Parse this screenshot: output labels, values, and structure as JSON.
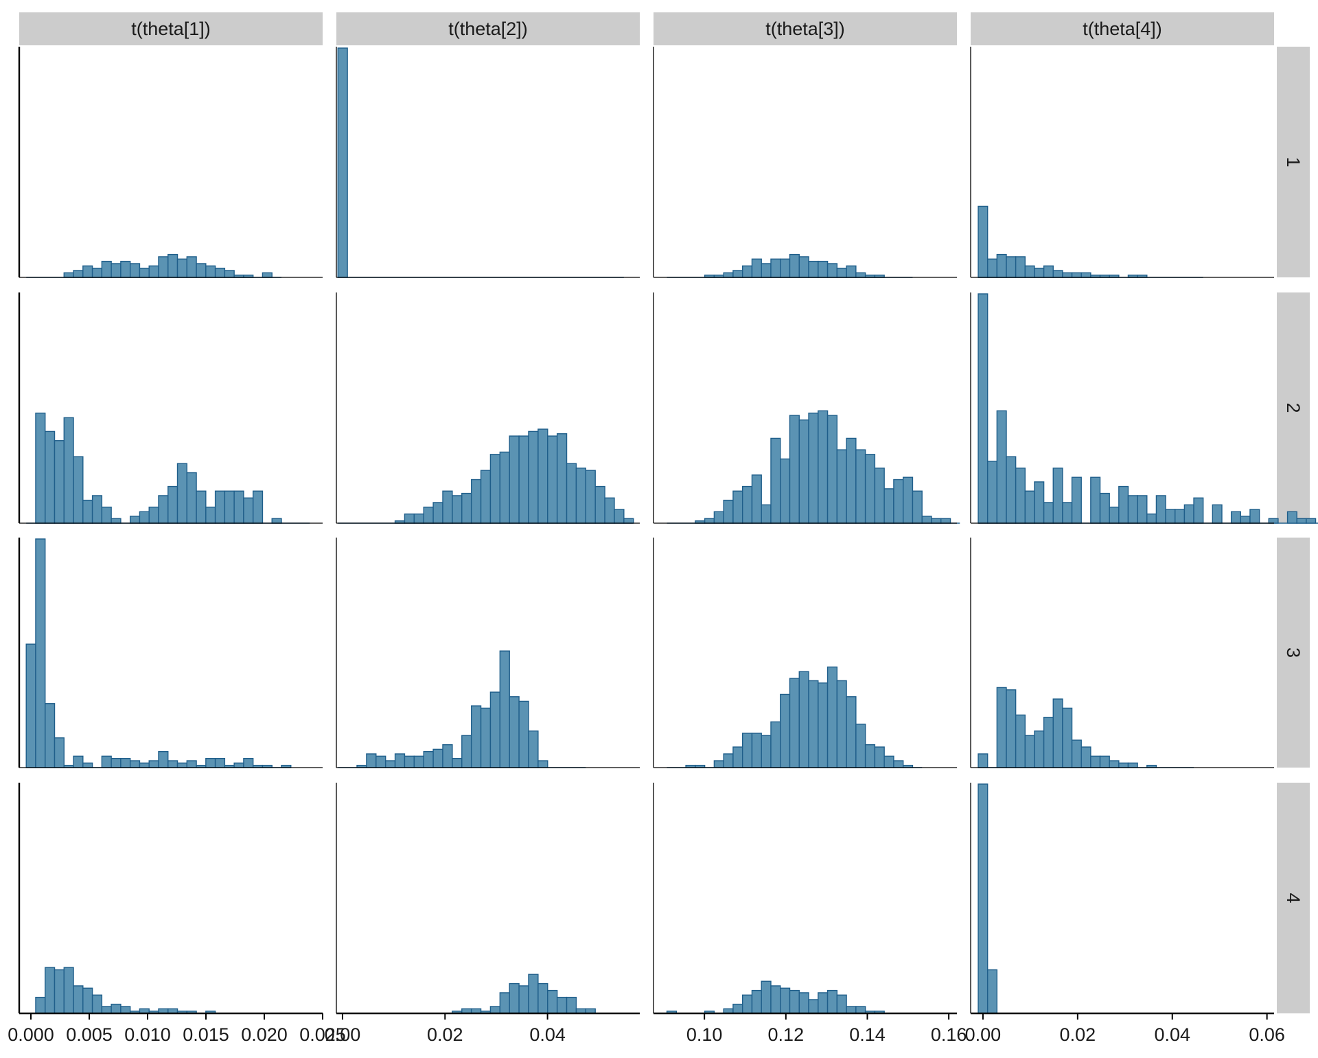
{
  "chart_data": {
    "type": "bar",
    "title": "",
    "xlabel": "",
    "ylabel": "",
    "grid": false,
    "colors": {
      "bar_fill": "#5b93b3",
      "bar_stroke": "#1f5e8a",
      "strip_fill": "#cccccc",
      "axis": "#000000",
      "text": "#1a1a1a"
    },
    "columns": [
      {
        "label": "t(theta[1])",
        "xlim": [
          -0.001,
          0.025
        ],
        "ticks": [
          0.0,
          0.005,
          0.01,
          0.015,
          0.02,
          0.025
        ],
        "tick_labels": [
          "0.000",
          "0.005",
          "0.010",
          "0.015",
          "0.020",
          "0.025"
        ],
        "bin_start": -0.0004,
        "bin_width": 0.00081
      },
      {
        "label": "t(theta[2])",
        "xlim": [
          -0.0012,
          0.058
        ],
        "ticks": [
          0.0,
          0.02,
          0.04
        ],
        "tick_labels": [
          "0.00",
          "0.02",
          "0.04"
        ],
        "bin_start": -0.0009,
        "bin_width": 0.00186
      },
      {
        "label": "t(theta[3])",
        "xlim": [
          0.0875,
          0.162
        ],
        "ticks": [
          0.1,
          0.12,
          0.14,
          0.16
        ],
        "tick_labels": [
          "0.10",
          "0.12",
          "0.14",
          "0.16"
        ],
        "bin_start": 0.0908,
        "bin_width": 0.00232
      },
      {
        "label": "t(theta[4])",
        "xlim": [
          -0.0026,
          0.0615
        ],
        "ticks": [
          0.0,
          0.02,
          0.04,
          0.06
        ],
        "tick_labels": [
          "0.00",
          "0.02",
          "0.04",
          "0.06"
        ],
        "bin_start": -0.001,
        "bin_width": 0.00198
      }
    ],
    "rows": [
      {
        "label": "1",
        "ylim": [
          0,
          100
        ],
        "counts": [
          [
            0,
            0,
            0,
            0,
            2,
            3,
            5,
            4,
            7,
            6,
            7,
            6,
            4,
            5,
            9,
            10,
            8,
            9,
            6,
            5,
            4,
            3,
            1,
            1,
            0,
            2,
            0
          ],
          [
            100,
            0,
            0,
            0,
            0,
            0,
            0,
            0,
            0,
            0,
            0,
            0,
            0,
            0,
            0,
            0,
            0,
            0,
            0,
            0,
            0,
            0,
            0,
            0,
            0,
            0,
            0,
            0,
            0,
            0
          ],
          [
            0,
            0,
            0,
            0,
            1,
            1,
            2,
            3,
            5,
            8,
            6,
            8,
            8,
            10,
            9,
            7,
            7,
            6,
            4,
            5,
            2,
            1,
            1,
            0,
            0,
            0
          ],
          [
            31,
            8,
            10,
            9,
            9,
            5,
            4,
            5,
            3,
            2,
            2,
            2,
            1,
            1,
            1,
            0,
            1,
            1,
            0,
            0,
            0,
            0,
            0,
            0
          ]
        ]
      },
      {
        "label": "2",
        "ylim": [
          0,
          100
        ],
        "counts": [
          [
            0,
            48,
            40,
            36,
            46,
            29,
            10,
            12,
            7,
            2,
            0,
            3,
            5,
            7,
            12,
            16,
            26,
            22,
            14,
            7,
            14,
            14,
            14,
            11,
            14,
            0,
            2,
            0,
            0,
            0
          ],
          [
            0,
            0,
            0,
            0,
            0,
            0,
            1,
            4,
            4,
            7,
            9,
            14,
            12,
            13,
            19,
            23,
            30,
            31,
            38,
            38,
            40,
            41,
            38,
            39,
            26,
            24,
            23,
            16,
            11,
            6,
            2
          ],
          [
            0,
            0,
            0,
            1,
            2,
            5,
            10,
            14,
            16,
            21,
            8,
            37,
            28,
            47,
            45,
            48,
            49,
            47,
            32,
            37,
            32,
            30,
            24,
            15,
            19,
            20,
            14,
            3,
            2,
            2,
            0
          ],
          [
            100,
            27,
            49,
            29,
            24,
            14,
            18,
            9,
            24,
            9,
            20,
            0,
            20,
            13,
            7,
            16,
            12,
            12,
            4,
            12,
            6,
            6,
            8,
            11,
            0,
            8,
            0,
            5,
            3,
            6,
            0,
            2,
            0,
            5,
            2,
            2,
            0,
            3,
            0,
            2
          ]
        ]
      },
      {
        "label": "3",
        "ylim": [
          0,
          100
        ],
        "counts": [
          [
            54,
            100,
            28,
            13,
            1,
            5,
            2,
            0,
            5,
            4,
            4,
            3,
            2,
            3,
            7,
            3,
            2,
            3,
            1,
            4,
            4,
            1,
            2,
            4,
            1,
            1,
            0,
            1
          ],
          [
            0,
            0,
            1,
            6,
            5,
            3,
            6,
            5,
            5,
            7,
            8,
            10,
            4,
            14,
            27,
            26,
            33,
            51,
            31,
            29,
            16,
            3,
            0,
            0,
            0,
            0
          ],
          [
            0,
            0,
            1,
            1,
            0,
            3,
            6,
            9,
            15,
            15,
            14,
            20,
            32,
            39,
            42,
            38,
            37,
            44,
            38,
            31,
            19,
            10,
            9,
            5,
            3,
            1,
            0
          ],
          [
            6,
            0,
            35,
            34,
            23,
            14,
            16,
            22,
            30,
            26,
            12,
            9,
            5,
            5,
            3,
            2,
            2,
            0,
            1,
            0,
            0,
            0,
            0
          ]
        ]
      },
      {
        "label": "4",
        "ylim": [
          0,
          100
        ],
        "counts": [
          [
            0,
            7,
            20,
            19,
            20,
            12,
            11,
            8,
            3,
            4,
            3,
            1,
            2,
            1,
            2,
            2,
            1,
            1,
            0,
            1,
            0,
            0,
            0,
            0,
            0,
            0
          ],
          [
            0,
            0,
            0,
            0,
            0,
            0,
            0,
            0,
            0,
            0,
            0,
            0,
            1,
            2,
            2,
            1,
            3,
            9,
            13,
            12,
            17,
            13,
            10,
            7,
            7,
            2,
            2,
            0
          ],
          [
            1,
            0,
            0,
            0,
            1,
            0,
            2,
            4,
            8,
            10,
            14,
            12,
            11,
            10,
            9,
            6,
            9,
            10,
            8,
            3,
            3,
            1,
            1,
            0,
            0
          ],
          [
            100,
            19,
            0,
            0,
            0,
            0,
            0,
            0,
            0,
            0
          ]
        ]
      }
    ]
  }
}
